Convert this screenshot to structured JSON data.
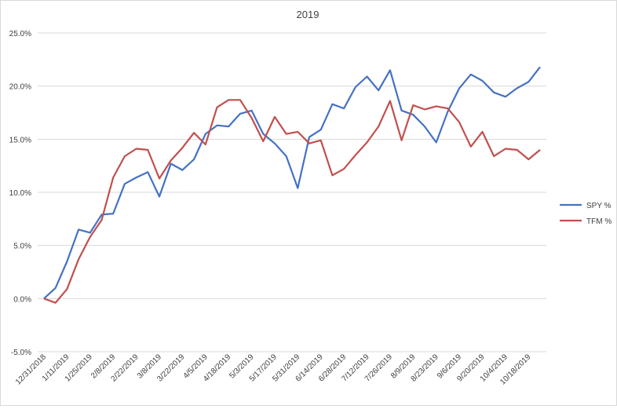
{
  "chart_data": {
    "type": "line",
    "title": "2019",
    "xlabel": "",
    "ylabel": "",
    "ylim": [
      -0.05,
      0.25
    ],
    "y_ticks": [
      "-5.0%",
      "0.0%",
      "5.0%",
      "10.0%",
      "15.0%",
      "20.0%",
      "25.0%"
    ],
    "y_tick_values": [
      -0.05,
      0,
      0.05,
      0.1,
      0.15,
      0.2,
      0.25
    ],
    "grid": "horizontal",
    "legend_position": "right",
    "x": [
      "12/31/2018",
      "1/4/2019",
      "1/11/2019",
      "1/18/2019",
      "1/25/2019",
      "2/1/2019",
      "2/8/2019",
      "2/15/2019",
      "2/22/2019",
      "3/1/2019",
      "3/8/2019",
      "3/15/2019",
      "3/22/2019",
      "3/29/2019",
      "4/5/2019",
      "4/12/2019",
      "4/18/2019",
      "4/26/2019",
      "5/3/2019",
      "5/10/2019",
      "5/17/2019",
      "5/24/2019",
      "5/31/2019",
      "6/7/2019",
      "6/14/2019",
      "6/21/2019",
      "6/28/2019",
      "7/5/2019",
      "7/12/2019",
      "7/19/2019",
      "7/26/2019",
      "8/2/2019",
      "8/9/2019",
      "8/16/2019",
      "8/23/2019",
      "8/30/2019",
      "9/6/2019",
      "9/13/2019",
      "9/20/2019",
      "9/27/2019",
      "10/4/2019",
      "10/11/2019",
      "10/18/2019",
      "10/25/2019"
    ],
    "x_tick_labels": [
      "12/31/2018",
      "1/11/2019",
      "1/25/2019",
      "2/8/2019",
      "2/22/2019",
      "3/8/2019",
      "3/22/2019",
      "4/5/2019",
      "4/18/2019",
      "5/3/2019",
      "5/17/2019",
      "5/31/2019",
      "6/14/2019",
      "6/28/2019",
      "7/12/2019",
      "7/26/2019",
      "8/9/2019",
      "8/23/2019",
      "9/6/2019",
      "9/20/2019",
      "10/4/2019",
      "10/18/2019"
    ],
    "series": [
      {
        "name": "SPY %",
        "color": "#4472c4",
        "values": [
          0.0,
          0.01,
          0.035,
          0.065,
          0.062,
          0.079,
          0.08,
          0.108,
          0.114,
          0.119,
          0.096,
          0.127,
          0.121,
          0.131,
          0.155,
          0.163,
          0.162,
          0.174,
          0.177,
          0.155,
          0.146,
          0.134,
          0.104,
          0.152,
          0.159,
          0.183,
          0.179,
          0.199,
          0.209,
          0.196,
          0.215,
          0.177,
          0.173,
          0.162,
          0.147,
          0.176,
          0.198,
          0.211,
          0.205,
          0.194,
          0.19,
          0.198,
          0.204,
          0.218
        ]
      },
      {
        "name": "TFM %",
        "color": "#c0504d",
        "values": [
          0.0,
          -0.004,
          0.009,
          0.037,
          0.058,
          0.074,
          0.114,
          0.134,
          0.141,
          0.14,
          0.113,
          0.13,
          0.142,
          0.156,
          0.145,
          0.18,
          0.187,
          0.187,
          0.17,
          0.148,
          0.171,
          0.155,
          0.157,
          0.146,
          0.149,
          0.116,
          0.122,
          0.135,
          0.147,
          0.162,
          0.186,
          0.149,
          0.182,
          0.178,
          0.181,
          0.179,
          0.166,
          0.143,
          0.157,
          0.134,
          0.141,
          0.14,
          0.131,
          0.14
        ]
      }
    ]
  }
}
